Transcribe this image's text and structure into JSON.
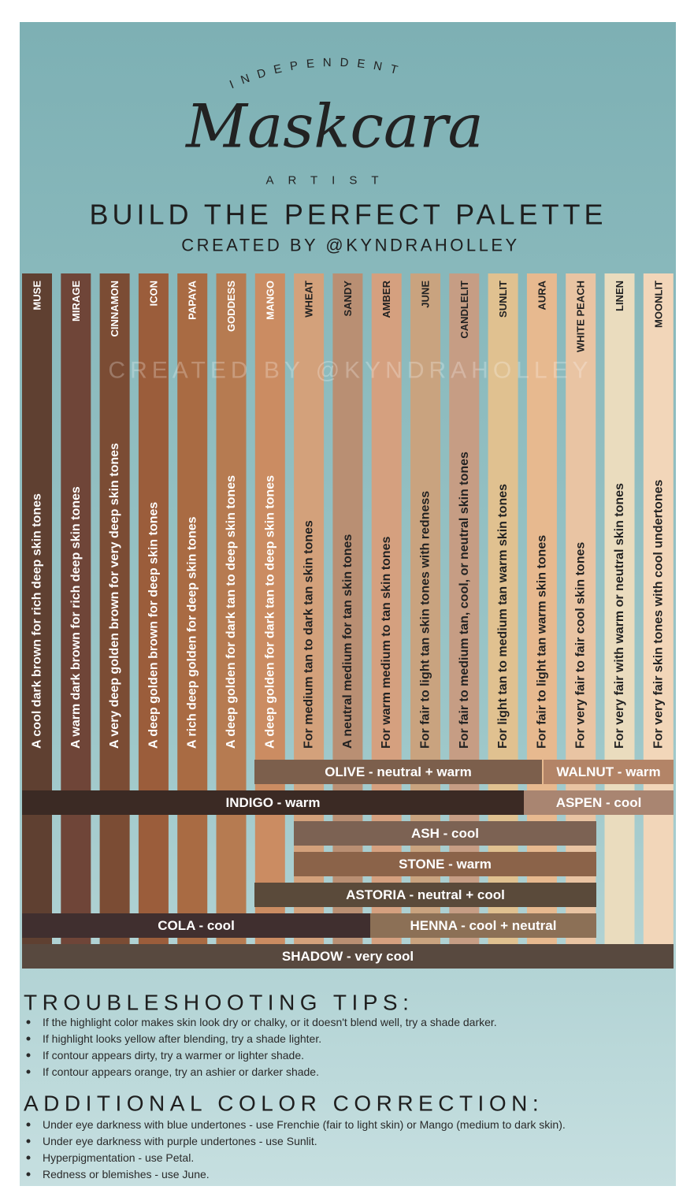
{
  "header": {
    "top_arc": "INDEPENDENT",
    "logo": "Maskcara",
    "bottom": "ARTIST",
    "title": "BUILD THE PERFECT PALETTE",
    "subtitle": "CREATED BY @KYNDRAHOLLEY"
  },
  "watermark": "CREATED BY @KYNDRAHOLLEY",
  "shades": [
    {
      "name": "MUSE",
      "description": "A cool dark brown for rich deep skin tones",
      "color": "#5f4031",
      "text": "#ffffff"
    },
    {
      "name": "MIRAGE",
      "description": "A warm dark brown for rich deep skin tones",
      "color": "#6f4538",
      "text": "#ffffff"
    },
    {
      "name": "CINNAMON",
      "description": "A very deep golden brown for very deep skin tones",
      "color": "#7b4c34",
      "text": "#ffffff"
    },
    {
      "name": "ICON",
      "description": "A deep golden brown for deep skin tones",
      "color": "#9b5d3b",
      "text": "#ffffff"
    },
    {
      "name": "PAPAYA",
      "description": "A rich deep golden for deep skin tones",
      "color": "#a96b43",
      "text": "#ffffff"
    },
    {
      "name": "GODDESS",
      "description": "A deep golden for dark tan to deep skin tones",
      "color": "#b67b51",
      "text": "#ffffff"
    },
    {
      "name": "MANGO",
      "description": "A deep golden for dark tan to deep skin tones",
      "color": "#cb8c62",
      "text": "#ffffff"
    },
    {
      "name": "WHEAT",
      "description": "For medium tan to dark tan skin tones",
      "color": "#d3a17b",
      "text": "#222222"
    },
    {
      "name": "SANDY",
      "description": "A neutral medium for tan skin tones",
      "color": "#b98f73",
      "text": "#222222"
    },
    {
      "name": "AMBER",
      "description": "For warm medium to tan skin tones",
      "color": "#d5a07f",
      "text": "#222222"
    },
    {
      "name": "JUNE",
      "description": "For fair to light tan skin tones with redness",
      "color": "#c9a37f",
      "text": "#222222"
    },
    {
      "name": "CANDLELIT",
      "description": "For fair to medium tan, cool, or neutral skin tones",
      "color": "#c69d84",
      "text": "#222222"
    },
    {
      "name": "SUNLIT",
      "description": "For light tan to medium tan warm skin tones",
      "color": "#e0c190",
      "text": "#222222"
    },
    {
      "name": "AURA",
      "description": "For fair to light tan warm skin tones",
      "color": "#e7b98f",
      "text": "#222222"
    },
    {
      "name": "WHITE PEACH",
      "description": "For very fair to fair cool skin tones",
      "color": "#e9c4a3",
      "text": "#222222"
    },
    {
      "name": "LINEN",
      "description": "For very fair with warm or neutral skin tones",
      "color": "#eadcbe",
      "text": "#222222"
    },
    {
      "name": "MOONLIT",
      "description": "For very fair skin tones with cool undertones",
      "color": "#f2d6b9",
      "text": "#222222"
    }
  ],
  "bars": [
    {
      "label": "OLIVE - neutral + warm",
      "color": "#7c5f4c"
    },
    {
      "label": "WALNUT - warm",
      "color": "#b38467"
    },
    {
      "label": "INDIGO - warm",
      "color": "#3b2a24"
    },
    {
      "label": "ASPEN - cool",
      "color": "#a98571"
    },
    {
      "label": "ASH - cool",
      "color": "#7c6253"
    },
    {
      "label": "STONE - warm",
      "color": "#8b6349"
    },
    {
      "label": "ASTORIA - neutral + cool",
      "color": "#5a4a3a"
    },
    {
      "label": "COLA - cool",
      "color": "#402f2f"
    },
    {
      "label": "HENNA - cool + neutral",
      "color": "#8c7056"
    },
    {
      "label": "SHADOW - very cool",
      "color": "#58493f"
    }
  ],
  "troubleshooting": {
    "heading": "TROUBLESHOOTING TIPS:",
    "tips": [
      "If the highlight color makes skin look dry or chalky, or it doesn't blend well, try a shade darker.",
      "If highlight looks yellow after blending, try a shade lighter.",
      "If contour appears dirty, try a warmer or lighter shade.",
      "If contour appears orange, try an ashier or darker shade."
    ]
  },
  "correction": {
    "heading": "ADDITIONAL COLOR CORRECTION:",
    "items": [
      "Under eye darkness with blue undertones - use Frenchie (fair to light skin) or Mango (medium to dark skin).",
      "Under eye darkness with purple undertones - use Sunlit.",
      "Hyperpigmentation - use Petal.",
      "Redness or blemishes - use June."
    ]
  }
}
